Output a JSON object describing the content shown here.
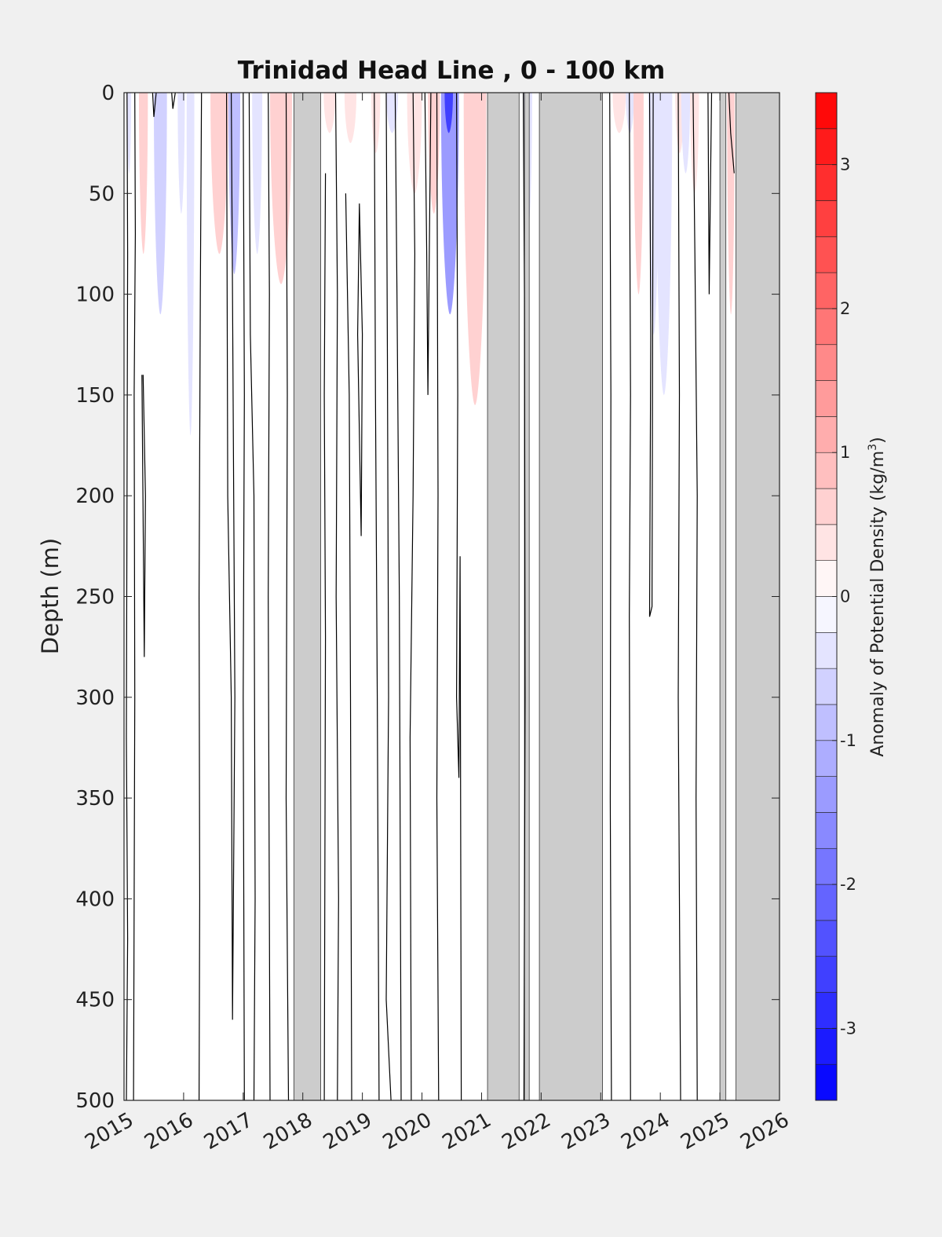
{
  "chart_data": {
    "type": "heatmap",
    "title": "Trinidad Head Line , 0 - 100 km",
    "ylabel": "Depth (m)",
    "xlabel": "",
    "xlim": [
      2015,
      2026
    ],
    "ylim": [
      500,
      0
    ],
    "y_reversed": true,
    "xticks": [
      "2015",
      "2016",
      "2017",
      "2018",
      "2019",
      "2020",
      "2021",
      "2022",
      "2023",
      "2024",
      "2025",
      "2026"
    ],
    "yticks": [
      "0",
      "50",
      "100",
      "150",
      "200",
      "250",
      "300",
      "350",
      "400",
      "450",
      "500"
    ],
    "colorbar": {
      "label_main": "Anomaly of Potential Density (kg/m",
      "label_sup": "3",
      "label_close": ")",
      "range": [
        -3.5,
        3.5
      ],
      "ticks": [
        "3",
        "2",
        "1",
        "0",
        "-1",
        "-2",
        "-3"
      ],
      "colors": {
        "negative": "#0000ff",
        "zero": "#ffffff",
        "positive": "#ff0000"
      }
    },
    "no_data_color": "#cccccc",
    "no_data_periods": [
      [
        2017.85,
        2018.3
      ],
      [
        2021.1,
        2021.63
      ],
      [
        2021.72,
        2021.8
      ],
      [
        2021.97,
        2023.03
      ],
      [
        2025.0,
        2025.1
      ],
      [
        2025.27,
        2026.0
      ]
    ],
    "anomaly_patches": [
      {
        "x0": 2015.05,
        "x1": 2015.12,
        "depth": 40,
        "value": -0.4
      },
      {
        "x0": 2015.25,
        "x1": 2015.4,
        "depth": 80,
        "value": 0.5
      },
      {
        "x0": 2015.5,
        "x1": 2015.72,
        "depth": 110,
        "value": -0.6
      },
      {
        "x0": 2015.9,
        "x1": 2016.02,
        "depth": 60,
        "value": -0.3
      },
      {
        "x0": 2016.05,
        "x1": 2016.18,
        "depth": 170,
        "value": -0.4
      },
      {
        "x0": 2016.45,
        "x1": 2016.75,
        "depth": 80,
        "value": 0.6
      },
      {
        "x0": 2016.75,
        "x1": 2016.95,
        "depth": 90,
        "value": -0.9
      },
      {
        "x0": 2017.15,
        "x1": 2017.32,
        "depth": 80,
        "value": -0.3
      },
      {
        "x0": 2017.45,
        "x1": 2017.82,
        "depth": 95,
        "value": 0.5
      },
      {
        "x0": 2018.35,
        "x1": 2018.55,
        "depth": 20,
        "value": 0.4
      },
      {
        "x0": 2018.7,
        "x1": 2018.9,
        "depth": 25,
        "value": 0.3
      },
      {
        "x0": 2019.15,
        "x1": 2019.3,
        "depth": 30,
        "value": 0.3
      },
      {
        "x0": 2019.4,
        "x1": 2019.6,
        "depth": 20,
        "value": -0.3
      },
      {
        "x0": 2019.75,
        "x1": 2020.0,
        "depth": 50,
        "value": 0.4
      },
      {
        "x0": 2020.1,
        "x1": 2020.3,
        "depth": 60,
        "value": 0.5
      },
      {
        "x0": 2020.32,
        "x1": 2020.62,
        "depth": 110,
        "value": -1.3
      },
      {
        "x0": 2020.38,
        "x1": 2020.52,
        "depth": 20,
        "value": -2.6
      },
      {
        "x0": 2020.7,
        "x1": 2021.08,
        "depth": 155,
        "value": 0.7
      },
      {
        "x0": 2021.7,
        "x1": 2021.85,
        "depth": 70,
        "value": -0.4
      },
      {
        "x0": 2023.2,
        "x1": 2023.42,
        "depth": 20,
        "value": 0.3
      },
      {
        "x0": 2023.42,
        "x1": 2023.56,
        "depth": 20,
        "value": -0.4
      },
      {
        "x0": 2023.55,
        "x1": 2023.72,
        "depth": 100,
        "value": 0.6
      },
      {
        "x0": 2023.8,
        "x1": 2023.98,
        "depth": 120,
        "value": -0.3
      },
      {
        "x0": 2023.92,
        "x1": 2024.2,
        "depth": 150,
        "value": -0.5
      },
      {
        "x0": 2024.25,
        "x1": 2024.4,
        "depth": 30,
        "value": 0.4
      },
      {
        "x0": 2024.35,
        "x1": 2024.5,
        "depth": 40,
        "value": -0.3
      },
      {
        "x0": 2024.5,
        "x1": 2024.65,
        "depth": 50,
        "value": 0.4
      },
      {
        "x0": 2025.12,
        "x1": 2025.25,
        "depth": 110,
        "value": 0.5
      }
    ],
    "zero_contours": [
      [
        [
          2015.05,
          0
        ],
        [
          2015.06,
          80
        ],
        [
          2015.05,
          200
        ],
        [
          2015.04,
          320
        ],
        [
          2015.06,
          420
        ],
        [
          2015.04,
          500
        ]
      ],
      [
        [
          2015.18,
          0
        ],
        [
          2015.19,
          70
        ],
        [
          2015.17,
          150
        ],
        [
          2015.18,
          300
        ],
        [
          2015.16,
          500
        ]
      ],
      [
        [
          2015.32,
          140
        ],
        [
          2015.36,
          200
        ],
        [
          2015.34,
          280
        ],
        [
          2015.3,
          140
        ]
      ],
      [
        [
          2015.48,
          0
        ],
        [
          2015.5,
          12
        ],
        [
          2015.54,
          0
        ]
      ],
      [
        [
          2015.8,
          0
        ],
        [
          2015.82,
          8
        ],
        [
          2015.86,
          0
        ]
      ],
      [
        [
          2016.3,
          0
        ],
        [
          2016.28,
          100
        ],
        [
          2016.26,
          250
        ],
        [
          2016.27,
          400
        ],
        [
          2016.26,
          500
        ]
      ],
      [
        [
          2016.72,
          0
        ],
        [
          2016.74,
          200
        ],
        [
          2016.8,
          300
        ],
        [
          2016.82,
          460
        ],
        [
          2016.86,
          300
        ],
        [
          2016.82,
          100
        ],
        [
          2016.8,
          0
        ]
      ],
      [
        [
          2017.0,
          0
        ],
        [
          2017.02,
          150
        ],
        [
          2017.0,
          300
        ],
        [
          2017.02,
          500
        ]
      ],
      [
        [
          2017.1,
          0
        ],
        [
          2017.12,
          120
        ],
        [
          2017.18,
          200
        ],
        [
          2017.2,
          400
        ],
        [
          2017.18,
          500
        ]
      ],
      [
        [
          2017.42,
          0
        ],
        [
          2017.44,
          100
        ],
        [
          2017.42,
          250
        ],
        [
          2017.45,
          500
        ]
      ],
      [
        [
          2017.72,
          0
        ],
        [
          2017.74,
          150
        ],
        [
          2017.72,
          350
        ],
        [
          2017.76,
          500
        ]
      ],
      [
        [
          2018.38,
          40
        ],
        [
          2018.36,
          150
        ],
        [
          2018.38,
          270
        ],
        [
          2018.36,
          500
        ]
      ],
      [
        [
          2018.55,
          0
        ],
        [
          2018.58,
          100
        ],
        [
          2018.56,
          250
        ],
        [
          2018.6,
          400
        ],
        [
          2018.58,
          500
        ]
      ],
      [
        [
          2018.72,
          50
        ],
        [
          2018.78,
          150
        ],
        [
          2018.8,
          300
        ],
        [
          2018.82,
          500
        ]
      ],
      [
        [
          2018.95,
          55
        ],
        [
          2019.0,
          120
        ],
        [
          2018.98,
          220
        ],
        [
          2018.92,
          120
        ],
        [
          2018.95,
          55
        ]
      ],
      [
        [
          2019.2,
          0
        ],
        [
          2019.22,
          150
        ],
        [
          2019.25,
          300
        ],
        [
          2019.28,
          500
        ]
      ],
      [
        [
          2019.4,
          0
        ],
        [
          2019.42,
          130
        ],
        [
          2019.44,
          300
        ],
        [
          2019.4,
          450
        ],
        [
          2019.48,
          500
        ]
      ],
      [
        [
          2019.55,
          0
        ],
        [
          2019.58,
          100
        ],
        [
          2019.62,
          250
        ],
        [
          2019.65,
          500
        ]
      ],
      [
        [
          2019.85,
          0
        ],
        [
          2019.88,
          80
        ],
        [
          2019.85,
          200
        ],
        [
          2019.8,
          320
        ],
        [
          2019.82,
          500
        ]
      ],
      [
        [
          2020.05,
          0
        ],
        [
          2020.08,
          80
        ],
        [
          2020.1,
          150
        ],
        [
          2020.15,
          0
        ]
      ],
      [
        [
          2020.25,
          0
        ],
        [
          2020.27,
          200
        ],
        [
          2020.25,
          350
        ],
        [
          2020.28,
          500
        ]
      ],
      [
        [
          2020.58,
          0
        ],
        [
          2020.6,
          150
        ],
        [
          2020.58,
          300
        ],
        [
          2020.62,
          340
        ],
        [
          2020.64,
          230
        ],
        [
          2020.66,
          500
        ]
      ],
      [
        [
          2021.7,
          0
        ],
        [
          2021.72,
          100
        ],
        [
          2021.73,
          300
        ],
        [
          2021.71,
          500
        ]
      ],
      [
        [
          2023.15,
          0
        ],
        [
          2023.17,
          150
        ],
        [
          2023.16,
          350
        ],
        [
          2023.18,
          500
        ]
      ],
      [
        [
          2023.48,
          0
        ],
        [
          2023.5,
          150
        ],
        [
          2023.48,
          260
        ],
        [
          2023.5,
          500
        ]
      ],
      [
        [
          2023.82,
          0
        ],
        [
          2023.84,
          120
        ],
        [
          2023.82,
          260
        ],
        [
          2023.86,
          255
        ],
        [
          2023.88,
          0
        ]
      ],
      [
        [
          2024.3,
          0
        ],
        [
          2024.32,
          150
        ],
        [
          2024.3,
          300
        ],
        [
          2024.34,
          500
        ]
      ],
      [
        [
          2024.55,
          0
        ],
        [
          2024.58,
          80
        ],
        [
          2024.62,
          200
        ],
        [
          2024.6,
          350
        ],
        [
          2024.62,
          500
        ]
      ],
      [
        [
          2024.8,
          0
        ],
        [
          2024.82,
          100
        ],
        [
          2024.86,
          0
        ]
      ],
      [
        [
          2025.15,
          0
        ],
        [
          2025.18,
          20
        ],
        [
          2025.24,
          40
        ]
      ]
    ]
  }
}
